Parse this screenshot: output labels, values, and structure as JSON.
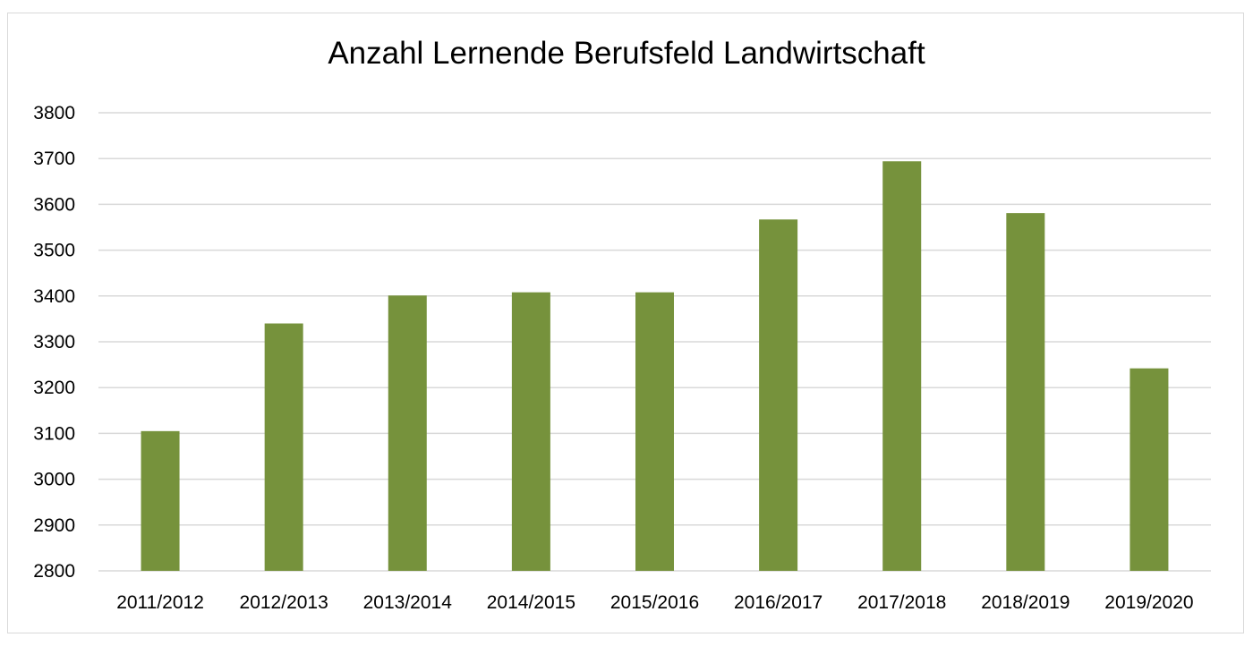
{
  "chart_data": {
    "type": "bar",
    "title": "Anzahl Lernende Berufsfeld Landwirtschaft",
    "xlabel": "",
    "ylabel": "",
    "categories": [
      "2011/2012",
      "2012/2013",
      "2013/2014",
      "2014/2015",
      "2015/2016",
      "2016/2017",
      "2017/2018",
      "2018/2019",
      "2019/2020"
    ],
    "values": [
      3105,
      3340,
      3401,
      3408,
      3408,
      3567,
      3694,
      3581,
      3242
    ],
    "ylim": [
      2800,
      3800
    ],
    "yticks": [
      2800,
      2900,
      3000,
      3100,
      3200,
      3300,
      3400,
      3500,
      3600,
      3700,
      3800
    ],
    "grid": true,
    "legend": "none",
    "bar_color": "#76923c",
    "grid_color": "#d9d9d9"
  }
}
